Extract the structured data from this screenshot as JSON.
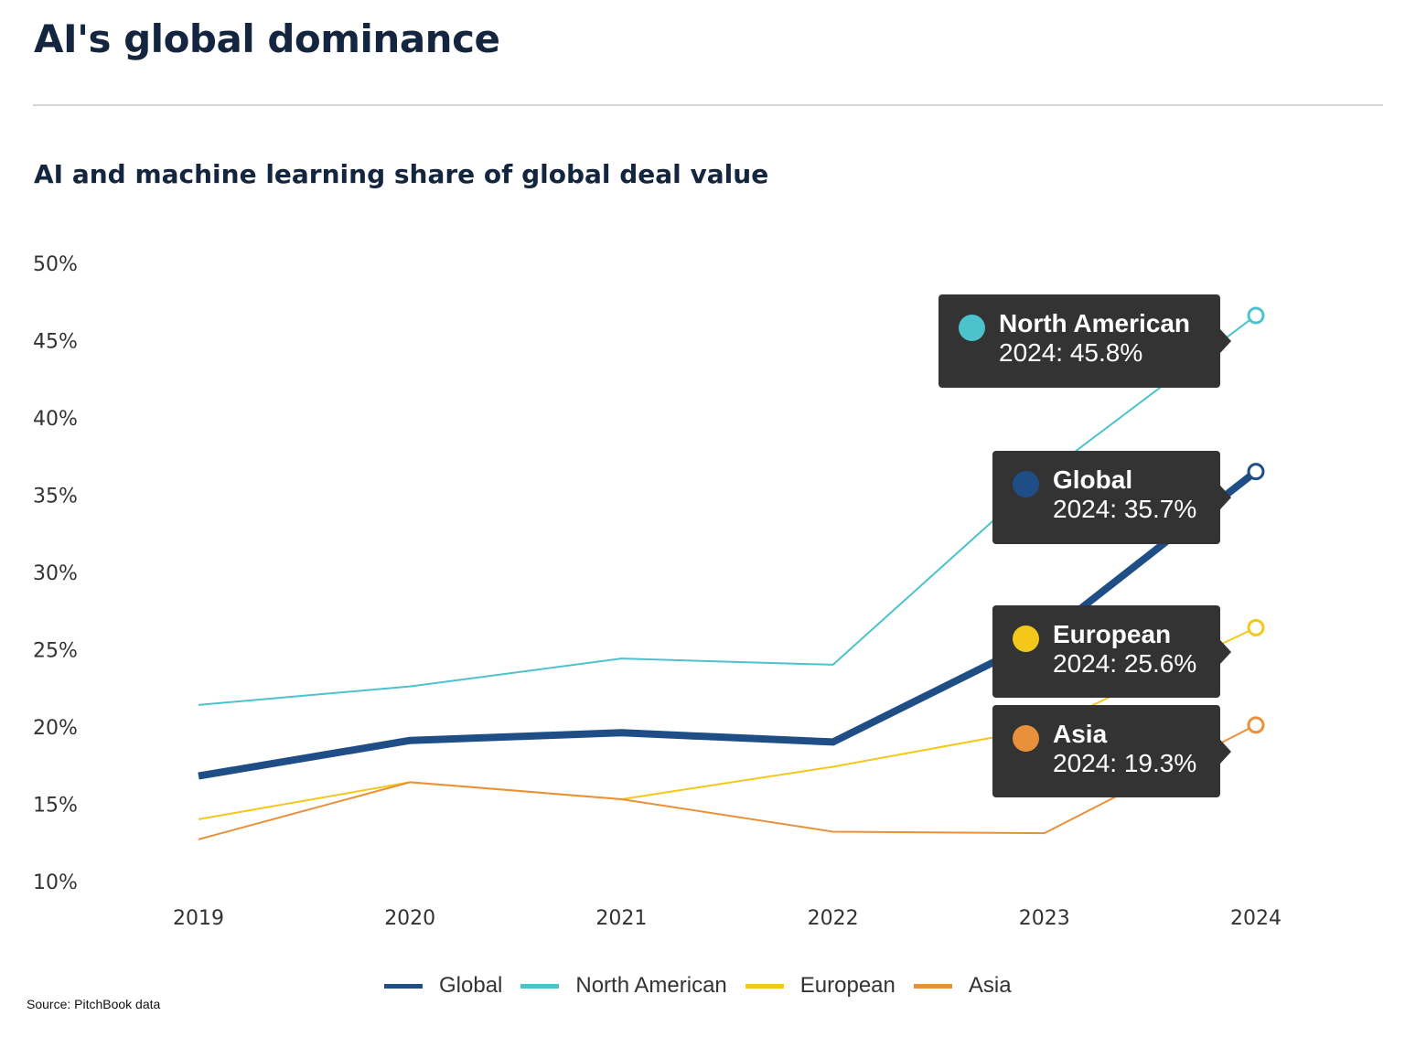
{
  "title": "AI's global dominance",
  "source": "Source: PitchBook data",
  "chart_data": {
    "type": "line",
    "title": "AI and machine learning share of global deal value",
    "xlabel": "",
    "ylabel": "",
    "categories": [
      "2019",
      "2020",
      "2021",
      "2022",
      "2023",
      "2024"
    ],
    "y_ticks": [
      "10%",
      "15%",
      "20%",
      "25%",
      "30%",
      "35%",
      "40%",
      "45%",
      "50%"
    ],
    "ylim": [
      10,
      50
    ],
    "grid": false,
    "legend_position": "bottom",
    "series": [
      {
        "name": "Global",
        "color": "#1f4e86",
        "values": [
          16.0,
          18.3,
          18.8,
          18.2,
          25.0,
          35.7
        ]
      },
      {
        "name": "North American",
        "color": "#4cc3cc",
        "values": [
          20.6,
          21.8,
          23.6,
          23.2,
          35.5,
          45.8
        ]
      },
      {
        "name": "European",
        "color": "#f3c81a",
        "values": [
          13.2,
          15.6,
          14.5,
          16.6,
          19.1,
          25.6
        ]
      },
      {
        "name": "Asia",
        "color": "#e8913a",
        "values": [
          11.9,
          15.6,
          14.5,
          12.4,
          12.3,
          19.3
        ]
      }
    ],
    "tooltips": [
      {
        "series": "North American",
        "text": "2024: 45.8%"
      },
      {
        "series": "Global",
        "text": "2024: 35.7%"
      },
      {
        "series": "European",
        "text": "2024: 25.6%"
      },
      {
        "series": "Asia",
        "text": "2024: 19.3%"
      }
    ]
  }
}
